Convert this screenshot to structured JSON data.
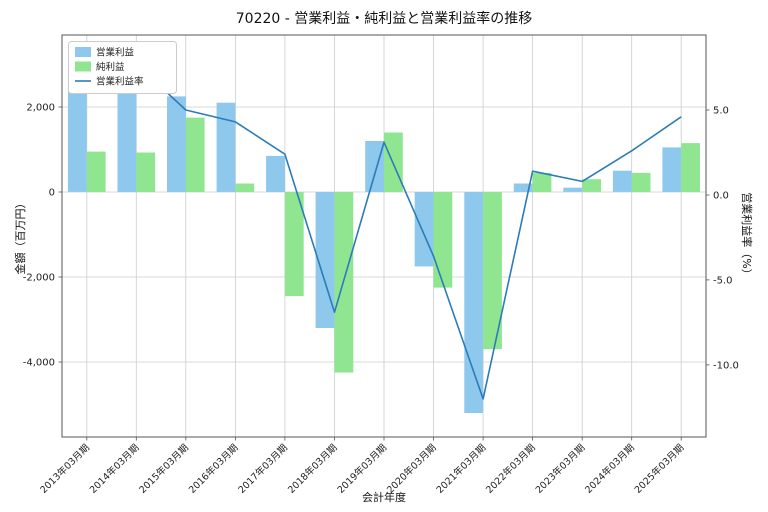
{
  "chart_data": {
    "type": "bar",
    "subtype": "grouped-bar-with-line",
    "title": "70220 - 営業利益・純利益と営業利益率の推移",
    "xlabel": "会計年度",
    "ylabel_left": "金額（百万円）",
    "ylabel_right": "営業利益率（%）",
    "categories": [
      "2013年03月期",
      "2014年03月期",
      "2015年03月期",
      "2016年03月期",
      "2017年03月期",
      "2018年03月期",
      "2019年03月期",
      "2020年03月期",
      "2021年03月期",
      "2022年03月期",
      "2023年03月期",
      "2024年03月期",
      "2025年03月期"
    ],
    "series": [
      {
        "name": "営業利益",
        "type": "bar",
        "axis": "left",
        "color": "#8ec8ec",
        "values": [
          2900,
          3250,
          2250,
          2100,
          850,
          -3200,
          1200,
          -1750,
          -5200,
          200,
          100,
          500,
          1050
        ]
      },
      {
        "name": "純利益",
        "type": "bar",
        "axis": "left",
        "color": "#90e690",
        "values": [
          950,
          930,
          1750,
          200,
          -2450,
          -4250,
          1400,
          -2250,
          -3700,
          450,
          300,
          450,
          1150
        ]
      },
      {
        "name": "営業利益率",
        "type": "line",
        "axis": "right",
        "color": "#2b7cb8",
        "values": [
          7.4,
          7.7,
          5.0,
          4.3,
          2.4,
          -6.9,
          3.1,
          -3.6,
          -12.0,
          1.4,
          0.8,
          2.6,
          4.6
        ]
      }
    ],
    "axes": {
      "left": {
        "min": -5765,
        "max": 3694,
        "ticks": [
          {
            "v": -4000,
            "label": "-4,000"
          },
          {
            "v": -2000,
            "label": "-2,000"
          },
          {
            "v": 0,
            "label": "0"
          },
          {
            "v": 2000,
            "label": "2,000"
          }
        ]
      },
      "right": {
        "min": -14.24,
        "max": 9.41,
        "ticks": [
          {
            "v": -10,
            "label": "-10.0"
          },
          {
            "v": -5,
            "label": "-5.0"
          },
          {
            "v": 0,
            "label": "0.0"
          },
          {
            "v": 5,
            "label": "5.0"
          }
        ]
      }
    },
    "grid": true,
    "legend": {
      "position": "top-left",
      "items": [
        "営業利益",
        "純利益",
        "営業利益率"
      ]
    },
    "colors": {
      "grid": "#cccccc",
      "frame": "#555555",
      "text": "#1f1f1f",
      "background": "#ffffff"
    }
  }
}
